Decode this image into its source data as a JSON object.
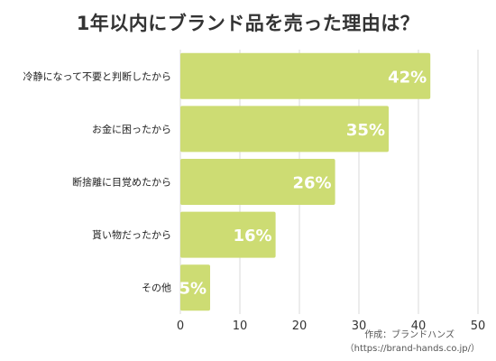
{
  "chart_data": {
    "type": "bar",
    "orientation": "horizontal",
    "title": "1年以内にブランド品を売った理由は？",
    "categories": [
      "冷静になって不要と判断したから",
      "お金に困ったから",
      "断捨離に目覚めたから",
      "貰い物だったから",
      "その他"
    ],
    "values": [
      42,
      35,
      26,
      16,
      5
    ],
    "value_labels": [
      "42%",
      "35%",
      "26%",
      "16%",
      "5%"
    ],
    "xlim": [
      0,
      50
    ],
    "x_ticks": [
      "0",
      "10",
      "20",
      "30",
      "40",
      "50"
    ],
    "grid": "vertical",
    "bar_color": "#cddc73",
    "xlabel": "",
    "ylabel": ""
  },
  "credit": {
    "line1": "作成：ブランドハンズ",
    "line2": "（https://brand-hands.co.jp/）"
  }
}
